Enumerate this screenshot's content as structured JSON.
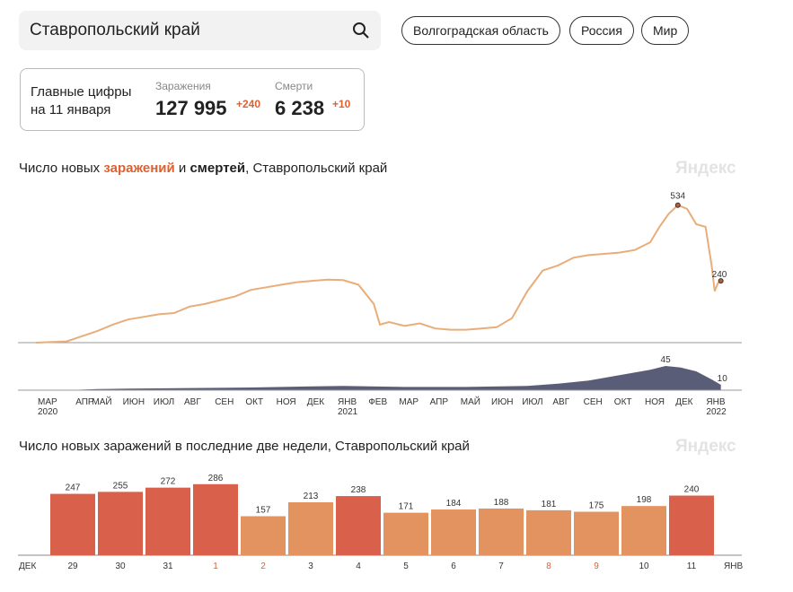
{
  "search": {
    "value": "Ставропольский край",
    "icon": "search-icon"
  },
  "chips": [
    "Волгоградская область",
    "Россия",
    "Мир"
  ],
  "stats": {
    "label1": "Главные цифры",
    "label2": "на 11 января",
    "infections_label": "Заражения",
    "infections": "127 995",
    "infections_delta": "+240",
    "deaths_label": "Смерти",
    "deaths": "6 238",
    "deaths_delta": "+10"
  },
  "chart1": {
    "title_pre": "Число новых ",
    "title_inf": "заражений",
    "title_mid": " и ",
    "title_dth": "смертей",
    "title_post": ", Ставропольский край",
    "logo": "Яндекс"
  },
  "chart2": {
    "title": "Число новых заражений в последние две недели, Ставропольский край",
    "logo": "Яндекс"
  },
  "colors": {
    "infections": "#e8ad78",
    "infections_peak": "#c9582d",
    "deaths": "#5a5d78",
    "bar_high": "#d9614b",
    "bar_low": "#e2935f"
  },
  "chart_data": [
    {
      "type": "line",
      "title": "Число новых заражений и смертей, Ставропольский край",
      "x_labels": [
        [
          "МАР",
          "2020"
        ],
        [
          "АПР",
          ""
        ],
        [
          "МАЙ",
          ""
        ],
        [
          "ИЮН",
          ""
        ],
        [
          "ИЮЛ",
          ""
        ],
        [
          "АВГ",
          ""
        ],
        [
          "СЕН",
          ""
        ],
        [
          "ОКТ",
          ""
        ],
        [
          "НОЯ",
          ""
        ],
        [
          "ДЕК",
          ""
        ],
        [
          "ЯНВ",
          "2021"
        ],
        [
          "ФЕВ",
          ""
        ],
        [
          "МАР",
          ""
        ],
        [
          "АПР",
          ""
        ],
        [
          "МАЙ",
          ""
        ],
        [
          "ИЮН",
          ""
        ],
        [
          "ИЮЛ",
          ""
        ],
        [
          "АВГ",
          ""
        ],
        [
          "СЕН",
          ""
        ],
        [
          "ОКТ",
          ""
        ],
        [
          "НОЯ",
          ""
        ],
        [
          "ДЕК",
          ""
        ],
        [
          "ЯНВ",
          "2022"
        ]
      ],
      "series": [
        {
          "name": "Заражения",
          "x_months": [
            0,
            1,
            1.5,
            2,
            2.5,
            3,
            3.5,
            4,
            4.5,
            5,
            5.5,
            6,
            6.5,
            7,
            7.5,
            8,
            8.5,
            9,
            9.5,
            10,
            10.5,
            11,
            11.2,
            11.5,
            12,
            12.5,
            13,
            13.5,
            14,
            14.5,
            15,
            15.5,
            16,
            16.5,
            17,
            17.5,
            18,
            18.5,
            19,
            19.5,
            20,
            20.3,
            20.6,
            20.9,
            21.2,
            21.5,
            21.8,
            22.0,
            22.1,
            22.2,
            22.3
          ],
          "values": [
            0,
            5,
            25,
            45,
            70,
            90,
            100,
            110,
            115,
            140,
            150,
            165,
            180,
            205,
            215,
            225,
            235,
            240,
            245,
            243,
            225,
            150,
            70,
            80,
            65,
            75,
            55,
            50,
            50,
            55,
            60,
            95,
            200,
            280,
            300,
            330,
            340,
            345,
            350,
            360,
            390,
            450,
            500,
            534,
            520,
            460,
            450,
            300,
            200,
            230,
            240
          ]
        },
        {
          "name": "Смерти",
          "x_months": [
            0,
            1,
            2,
            3,
            5,
            7,
            9,
            10,
            12,
            14,
            16,
            17,
            18,
            19,
            20,
            20.5,
            21,
            21.5,
            22,
            22.3
          ],
          "values": [
            0,
            0,
            2,
            3,
            4,
            5,
            7,
            8,
            6,
            6,
            8,
            12,
            18,
            28,
            38,
            45,
            42,
            35,
            20,
            10
          ]
        }
      ],
      "annotations": [
        {
          "label": "534",
          "value": 534
        },
        {
          "label": "240",
          "value": 240
        },
        {
          "label": "45",
          "value": 45
        },
        {
          "label": "10",
          "value": 10
        }
      ]
    },
    {
      "type": "bar",
      "title": "Число новых заражений в последние две недели, Ставропольский край",
      "categories": [
        "29",
        "30",
        "31",
        "1",
        "2",
        "3",
        "4",
        "5",
        "6",
        "7",
        "8",
        "9",
        "10",
        "11"
      ],
      "values": [
        247,
        255,
        272,
        286,
        157,
        213,
        238,
        171,
        184,
        188,
        181,
        175,
        198,
        240
      ],
      "highlighted": [
        true,
        true,
        true,
        true,
        false,
        false,
        true,
        false,
        false,
        false,
        false,
        false,
        false,
        true
      ],
      "holiday_labels": [
        "1",
        "2",
        "8",
        "9"
      ],
      "x_start_label": "ДЕК",
      "x_end_label": "ЯНВ"
    }
  ]
}
